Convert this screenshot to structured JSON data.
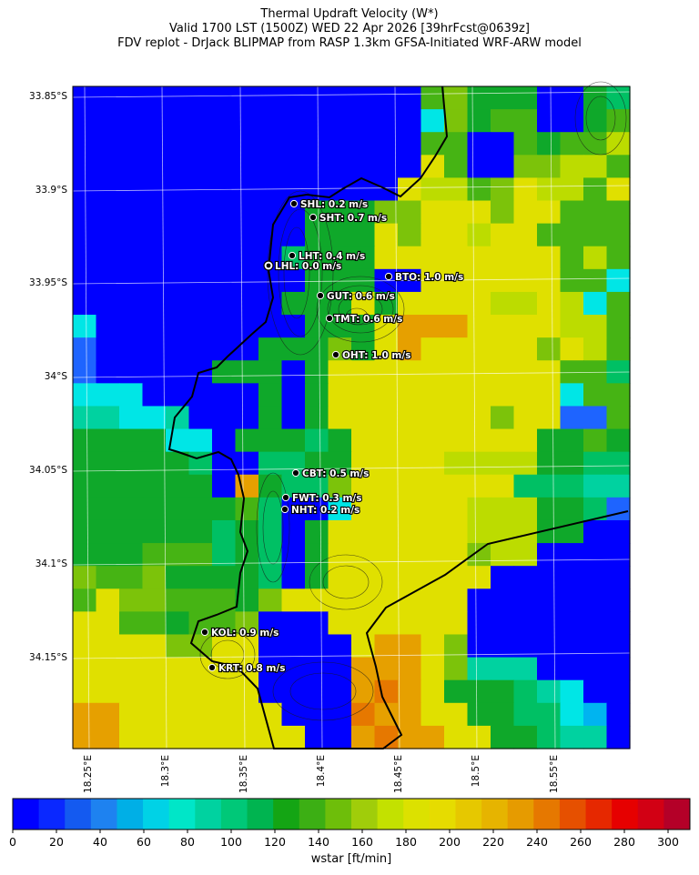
{
  "title": {
    "line1": "Thermal Updraft Velocity (W*)",
    "line2": "Valid 1700 LST (1500Z) WED 22 Apr 2026 [39hrFcst@0639z]",
    "line3": "FDV replot - DrJack BLIPMAP from RASP 1.3km GFSA-Initiated WRF-ARW model"
  },
  "map": {
    "lat_labels": [
      "33.85°S",
      "33.9°S",
      "33.95°S",
      "34°S",
      "34.05°S",
      "34.1°S",
      "34.15°S"
    ],
    "lon_labels": [
      "18.25°E",
      "18.3°E",
      "18.35°E",
      "18.4°E",
      "18.45°E",
      "18.5°E",
      "18.55°E"
    ],
    "sites": [
      {
        "code": "SHL",
        "label": "SHL: 0.2 m/s",
        "value_ms": 0.2
      },
      {
        "code": "SHT",
        "label": "SHT: 0.7 m/s",
        "value_ms": 0.7
      },
      {
        "code": "LHT",
        "label": "LHT: 0.4 m/s",
        "value_ms": 0.4
      },
      {
        "code": "LHL",
        "label": "LHL: 0.0 m/s",
        "value_ms": 0.0
      },
      {
        "code": "BTO",
        "label": "BTO: 1.0 m/s",
        "value_ms": 1.0
      },
      {
        "code": "GUT",
        "label": "GUT: 0.6 m/s",
        "value_ms": 0.6
      },
      {
        "code": "TMT",
        "label": "TMT: 0.6 m/s",
        "value_ms": 0.6
      },
      {
        "code": "OHT",
        "label": "OHT: 1.0 m/s",
        "value_ms": 1.0
      },
      {
        "code": "CBT",
        "label": "CBT: 0.5 m/s",
        "value_ms": 0.5
      },
      {
        "code": "FWT",
        "label": "FWT: 0.3 m/s",
        "value_ms": 0.3
      },
      {
        "code": "NHT",
        "label": "NHT: 0.2 m/s",
        "value_ms": 0.2
      },
      {
        "code": "KOL",
        "label": "KOL: 0.9 m/s",
        "value_ms": 0.9
      },
      {
        "code": "KRT",
        "label": "KRT: 0.8 m/s",
        "value_ms": 0.8
      }
    ]
  },
  "colorbar": {
    "label": "wstar [ft/min]",
    "ticks": [
      "0",
      "20",
      "40",
      "60",
      "80",
      "100",
      "120",
      "140",
      "160",
      "180",
      "200",
      "220",
      "240",
      "260",
      "280",
      "300"
    ],
    "colors": [
      "#0000ff",
      "#0a28ff",
      "#145af0",
      "#1e82f0",
      "#00afe6",
      "#00d2e6",
      "#00e6c8",
      "#00d2a0",
      "#00c878",
      "#00b450",
      "#14a514",
      "#3caf14",
      "#6ebe0a",
      "#a0cd0a",
      "#c3e100",
      "#dce100",
      "#e6dc00",
      "#e6c800",
      "#e6b400",
      "#e69b00",
      "#e67800",
      "#e65000",
      "#e62800",
      "#e60000",
      "#d20014",
      "#b40028"
    ]
  }
}
